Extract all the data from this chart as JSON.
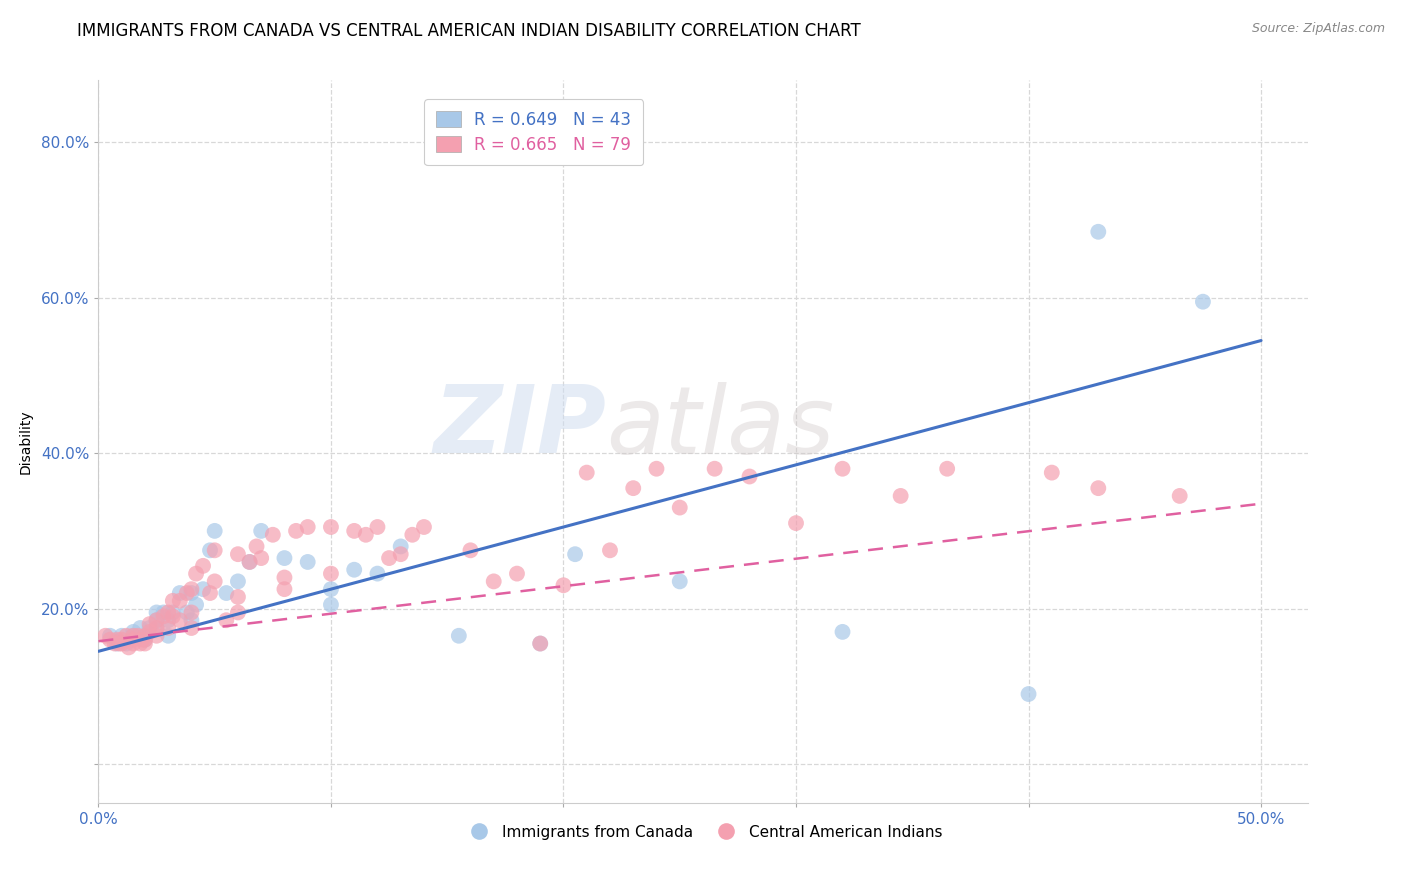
{
  "title": "IMMIGRANTS FROM CANADA VS CENTRAL AMERICAN INDIAN DISABILITY CORRELATION CHART",
  "source": "Source: ZipAtlas.com",
  "ylabel": "Disability",
  "xlabel": "",
  "xlim": [
    0.0,
    0.52
  ],
  "ylim": [
    -0.05,
    0.88
  ],
  "xticks": [
    0.0,
    0.1,
    0.2,
    0.3,
    0.4,
    0.5
  ],
  "xticklabels": [
    "0.0%",
    "",
    "",
    "",
    "",
    "50.0%"
  ],
  "yticks": [
    0.0,
    0.2,
    0.4,
    0.6,
    0.8
  ],
  "yticklabels": [
    "",
    "20.0%",
    "40.0%",
    "60.0%",
    "80.0%"
  ],
  "canada_scatter_x": [
    0.005,
    0.008,
    0.01,
    0.012,
    0.015,
    0.015,
    0.018,
    0.02,
    0.022,
    0.025,
    0.025,
    0.025,
    0.028,
    0.03,
    0.03,
    0.032,
    0.035,
    0.038,
    0.04,
    0.04,
    0.042,
    0.045,
    0.048,
    0.05,
    0.055,
    0.06,
    0.065,
    0.07,
    0.08,
    0.09,
    0.1,
    0.1,
    0.11,
    0.12,
    0.13,
    0.155,
    0.19,
    0.205,
    0.25,
    0.32,
    0.4,
    0.43,
    0.475
  ],
  "canada_scatter_y": [
    0.165,
    0.155,
    0.165,
    0.155,
    0.165,
    0.17,
    0.175,
    0.16,
    0.175,
    0.175,
    0.185,
    0.195,
    0.195,
    0.165,
    0.185,
    0.195,
    0.22,
    0.195,
    0.22,
    0.185,
    0.205,
    0.225,
    0.275,
    0.3,
    0.22,
    0.235,
    0.26,
    0.3,
    0.265,
    0.26,
    0.205,
    0.225,
    0.25,
    0.245,
    0.28,
    0.165,
    0.155,
    0.27,
    0.235,
    0.17,
    0.09,
    0.685,
    0.595
  ],
  "canada_line_x": [
    0.0,
    0.5
  ],
  "canada_line_y": [
    0.145,
    0.545
  ],
  "central_scatter_x": [
    0.003,
    0.005,
    0.007,
    0.008,
    0.009,
    0.01,
    0.01,
    0.012,
    0.013,
    0.015,
    0.015,
    0.015,
    0.017,
    0.018,
    0.019,
    0.02,
    0.02,
    0.02,
    0.022,
    0.022,
    0.025,
    0.025,
    0.025,
    0.028,
    0.03,
    0.03,
    0.032,
    0.032,
    0.035,
    0.035,
    0.038,
    0.04,
    0.04,
    0.04,
    0.042,
    0.045,
    0.048,
    0.05,
    0.05,
    0.055,
    0.06,
    0.06,
    0.06,
    0.065,
    0.068,
    0.07,
    0.075,
    0.08,
    0.08,
    0.085,
    0.09,
    0.1,
    0.1,
    0.11,
    0.115,
    0.12,
    0.125,
    0.13,
    0.135,
    0.14,
    0.16,
    0.17,
    0.18,
    0.19,
    0.2,
    0.21,
    0.22,
    0.23,
    0.24,
    0.25,
    0.265,
    0.28,
    0.3,
    0.32,
    0.345,
    0.365,
    0.41,
    0.43,
    0.465
  ],
  "central_scatter_y": [
    0.165,
    0.16,
    0.155,
    0.16,
    0.155,
    0.155,
    0.16,
    0.165,
    0.15,
    0.155,
    0.16,
    0.165,
    0.165,
    0.155,
    0.16,
    0.155,
    0.16,
    0.165,
    0.17,
    0.18,
    0.165,
    0.175,
    0.185,
    0.19,
    0.175,
    0.195,
    0.19,
    0.21,
    0.185,
    0.21,
    0.22,
    0.175,
    0.195,
    0.225,
    0.245,
    0.255,
    0.22,
    0.235,
    0.275,
    0.185,
    0.195,
    0.215,
    0.27,
    0.26,
    0.28,
    0.265,
    0.295,
    0.225,
    0.24,
    0.3,
    0.305,
    0.245,
    0.305,
    0.3,
    0.295,
    0.305,
    0.265,
    0.27,
    0.295,
    0.305,
    0.275,
    0.235,
    0.245,
    0.155,
    0.23,
    0.375,
    0.275,
    0.355,
    0.38,
    0.33,
    0.38,
    0.37,
    0.31,
    0.38,
    0.345,
    0.38,
    0.375,
    0.355,
    0.345
  ],
  "central_line_x": [
    0.0,
    0.5
  ],
  "central_line_y": [
    0.158,
    0.335
  ],
  "watermark_zip": "ZIP",
  "watermark_atlas": "atlas",
  "bg_color": "#ffffff",
  "grid_color": "#d8d8d8",
  "canada_color": "#a8c8e8",
  "central_color": "#f4a0b0",
  "canada_line_color": "#4472c4",
  "central_line_color": "#e060a0",
  "title_fontsize": 12,
  "axis_label_fontsize": 10,
  "tick_fontsize": 11,
  "tick_color": "#4472c4",
  "legend_fontsize": 12
}
